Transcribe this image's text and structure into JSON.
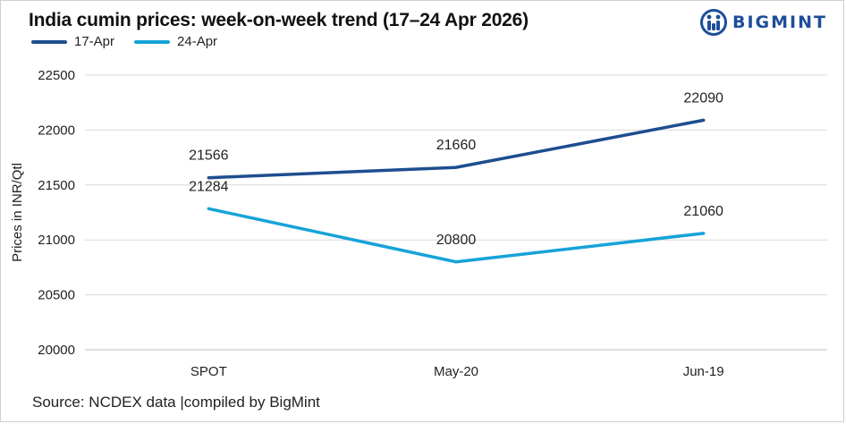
{
  "header": {
    "title": "India cumin prices: week-on-week trend (17–24 Apr 2026)",
    "logo_text": "BIGMINT"
  },
  "footer": {
    "source": "Source: NCDEX data  |compiled by BigMint"
  },
  "colors": {
    "series_17apr": "#1d4e8f",
    "series_24apr": "#16a3d8",
    "logo": "#1d4e9a"
  },
  "chart_data": {
    "type": "line",
    "title": "India cumin prices: week-on-week trend (17–24 Apr 2026)",
    "xlabel": "",
    "ylabel": "Prices in INR/Qtl",
    "categories": [
      "SPOT",
      "May-20",
      "Jun-19"
    ],
    "series": [
      {
        "name": "17-Apr",
        "values": [
          21566,
          21660,
          22090
        ],
        "labels": [
          "21566",
          "21660",
          "22090"
        ]
      },
      {
        "name": "24-Apr",
        "values": [
          21284,
          20800,
          21060
        ],
        "labels": [
          "21284",
          "20800",
          "21060"
        ]
      }
    ],
    "ylim": [
      20000,
      22500
    ],
    "yticks": [
      "20000",
      "20500",
      "21000",
      "21500",
      "22000",
      "22500"
    ],
    "grid": true,
    "legend": "top-left"
  }
}
